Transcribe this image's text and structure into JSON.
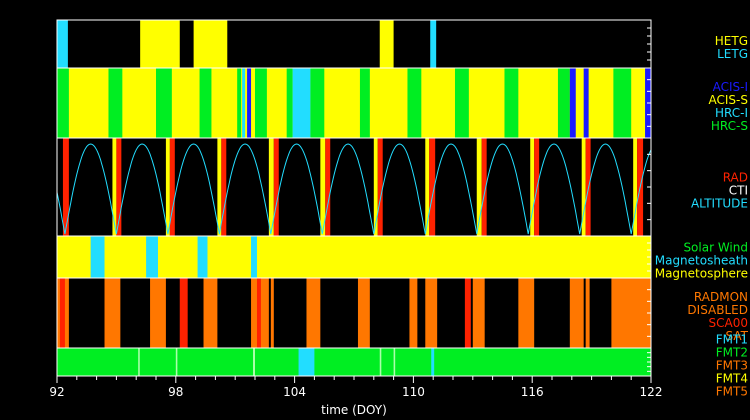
{
  "chart_data": {
    "type": "timeline",
    "xlabel": "time (DOY)",
    "xlim": [
      92,
      122
    ],
    "xticks": [
      92,
      98,
      104,
      110,
      116,
      122
    ],
    "colors": {
      "yellow": "#ffff00",
      "cyan": "#22ddff",
      "green": "#00ee22",
      "blue": "#1a1aff",
      "red": "#ff2200",
      "orange": "#ff7700",
      "white": "#ffffff",
      "black": "#000000"
    },
    "panels": [
      {
        "id": "grating",
        "legend": [
          {
            "label": "HETG",
            "color": "#ffff00"
          },
          {
            "label": "LETG",
            "color": "#22ddff"
          }
        ],
        "background": "#000000",
        "segments": [
          {
            "start": 92.0,
            "end": 92.55,
            "color": "#22ddff"
          },
          {
            "start": 96.2,
            "end": 98.2,
            "color": "#ffff00"
          },
          {
            "start": 98.9,
            "end": 100.6,
            "color": "#ffff00"
          },
          {
            "start": 108.3,
            "end": 109.0,
            "color": "#ffff00"
          },
          {
            "start": 110.85,
            "end": 111.15,
            "color": "#22ddff"
          }
        ]
      },
      {
        "id": "instrument",
        "legend": [
          {
            "label": "ACIS-I",
            "color": "#1a1aff"
          },
          {
            "label": "ACIS-S",
            "color": "#ffff00"
          },
          {
            "label": "HRC-I",
            "color": "#22ddff"
          },
          {
            "label": "HRC-S",
            "color": "#00ee22"
          }
        ],
        "background": "#ffff00",
        "segments": [
          {
            "start": 92.0,
            "end": 92.6,
            "color": "#00ee22"
          },
          {
            "start": 94.6,
            "end": 95.3,
            "color": "#00ee22"
          },
          {
            "start": 97.0,
            "end": 97.8,
            "color": "#00ee22"
          },
          {
            "start": 99.2,
            "end": 99.8,
            "color": "#00ee22"
          },
          {
            "start": 101.1,
            "end": 101.3,
            "color": "#00ee22"
          },
          {
            "start": 101.35,
            "end": 101.5,
            "color": "#22ddff"
          },
          {
            "start": 101.6,
            "end": 101.8,
            "color": "#1a1aff"
          },
          {
            "start": 102.0,
            "end": 102.6,
            "color": "#00ee22"
          },
          {
            "start": 103.6,
            "end": 103.9,
            "color": "#00ee22"
          },
          {
            "start": 103.9,
            "end": 104.8,
            "color": "#22ddff"
          },
          {
            "start": 104.8,
            "end": 105.5,
            "color": "#00ee22"
          },
          {
            "start": 107.3,
            "end": 107.8,
            "color": "#00ee22"
          },
          {
            "start": 109.7,
            "end": 110.4,
            "color": "#00ee22"
          },
          {
            "start": 112.1,
            "end": 112.8,
            "color": "#00ee22"
          },
          {
            "start": 114.6,
            "end": 115.3,
            "color": "#00ee22"
          },
          {
            "start": 117.3,
            "end": 117.9,
            "color": "#00ee22"
          },
          {
            "start": 117.9,
            "end": 118.2,
            "color": "#1a1aff"
          },
          {
            "start": 118.6,
            "end": 118.85,
            "color": "#1a1aff"
          },
          {
            "start": 120.1,
            "end": 121.0,
            "color": "#00ee22"
          },
          {
            "start": 121.7,
            "end": 122.0,
            "color": "#1a1aff"
          }
        ]
      },
      {
        "id": "radiation",
        "legend": [
          {
            "label": "RAD",
            "color": "#ff2200"
          },
          {
            "label": "CTI",
            "color": "#ffffff"
          },
          {
            "label": "ALTITUDE",
            "color": "#22ddff"
          }
        ],
        "background": "#000000",
        "altitude_perigees": [
          92.4,
          95.0,
          97.7,
          100.3,
          102.9,
          105.5,
          108.2,
          110.8,
          113.4,
          116.1,
          118.7,
          121.3
        ],
        "segments": [
          {
            "start": 92.3,
            "end": 92.6,
            "color": "#ff2200"
          },
          {
            "start": 94.8,
            "end": 95.0,
            "color": "#ffff00"
          },
          {
            "start": 95.0,
            "end": 95.25,
            "color": "#ff2200"
          },
          {
            "start": 97.5,
            "end": 97.7,
            "color": "#ffff00"
          },
          {
            "start": 97.7,
            "end": 97.95,
            "color": "#ff2200"
          },
          {
            "start": 100.1,
            "end": 100.3,
            "color": "#ffff00"
          },
          {
            "start": 100.3,
            "end": 100.55,
            "color": "#ff2200"
          },
          {
            "start": 102.7,
            "end": 102.95,
            "color": "#ffff00"
          },
          {
            "start": 102.95,
            "end": 103.2,
            "color": "#ff2200"
          },
          {
            "start": 105.3,
            "end": 105.55,
            "color": "#ffff00"
          },
          {
            "start": 105.55,
            "end": 105.8,
            "color": "#ff2200"
          },
          {
            "start": 108.0,
            "end": 108.2,
            "color": "#ffff00"
          },
          {
            "start": 108.2,
            "end": 108.45,
            "color": "#ff2200"
          },
          {
            "start": 110.6,
            "end": 110.8,
            "color": "#ffff00"
          },
          {
            "start": 110.8,
            "end": 111.1,
            "color": "#ff2200"
          },
          {
            "start": 113.2,
            "end": 113.45,
            "color": "#ffff00"
          },
          {
            "start": 113.45,
            "end": 113.7,
            "color": "#ff2200"
          },
          {
            "start": 115.9,
            "end": 116.1,
            "color": "#ffff00"
          },
          {
            "start": 116.1,
            "end": 116.35,
            "color": "#ff2200"
          },
          {
            "start": 118.5,
            "end": 118.7,
            "color": "#ffff00"
          },
          {
            "start": 118.7,
            "end": 118.95,
            "color": "#ff2200"
          },
          {
            "start": 121.1,
            "end": 121.3,
            "color": "#ffff00"
          },
          {
            "start": 121.3,
            "end": 121.6,
            "color": "#ff2200"
          }
        ]
      },
      {
        "id": "region",
        "legend": [
          {
            "label": "Solar Wind",
            "color": "#00ee22"
          },
          {
            "label": "Magnetosheath",
            "color": "#22ddff"
          },
          {
            "label": "Magnetosphere",
            "color": "#ffff00"
          }
        ],
        "background": "#ffff00",
        "segments": [
          {
            "start": 93.7,
            "end": 94.4,
            "color": "#22ddff"
          },
          {
            "start": 96.5,
            "end": 97.1,
            "color": "#22ddff"
          },
          {
            "start": 99.1,
            "end": 99.6,
            "color": "#22ddff"
          },
          {
            "start": 101.8,
            "end": 102.1,
            "color": "#22ddff"
          }
        ]
      },
      {
        "id": "radmon",
        "legend": [
          {
            "label": "RADMON",
            "color": "#ff7700"
          },
          {
            "label": "DISABLED",
            "color": "#ff7700"
          },
          {
            "label": "SCA00",
            "color": "#ff2200"
          },
          {
            "label": "SAT",
            "color": "#ff7700"
          }
        ],
        "background": "#000000",
        "segments": [
          {
            "start": 92.0,
            "end": 92.6,
            "color": "#ff7700"
          },
          {
            "start": 92.15,
            "end": 92.4,
            "color": "#ff2200"
          },
          {
            "start": 94.4,
            "end": 95.2,
            "color": "#ff7700"
          },
          {
            "start": 96.7,
            "end": 97.5,
            "color": "#ff7700"
          },
          {
            "start": 98.2,
            "end": 98.6,
            "color": "#ff2200"
          },
          {
            "start": 99.4,
            "end": 100.1,
            "color": "#ff7700"
          },
          {
            "start": 101.8,
            "end": 102.7,
            "color": "#ff7700"
          },
          {
            "start": 102.1,
            "end": 102.3,
            "color": "#ff2200"
          },
          {
            "start": 102.8,
            "end": 102.95,
            "color": "#ff7700"
          },
          {
            "start": 104.6,
            "end": 105.3,
            "color": "#ff7700"
          },
          {
            "start": 107.2,
            "end": 107.8,
            "color": "#ff7700"
          },
          {
            "start": 109.8,
            "end": 110.2,
            "color": "#ff7700"
          },
          {
            "start": 110.6,
            "end": 111.2,
            "color": "#ff7700"
          },
          {
            "start": 112.6,
            "end": 112.9,
            "color": "#ff2200"
          },
          {
            "start": 113.0,
            "end": 113.6,
            "color": "#ff7700"
          },
          {
            "start": 115.3,
            "end": 116.1,
            "color": "#ff7700"
          },
          {
            "start": 117.9,
            "end": 118.6,
            "color": "#ff7700"
          },
          {
            "start": 118.7,
            "end": 118.9,
            "color": "#ff7700"
          },
          {
            "start": 120.0,
            "end": 122.0,
            "color": "#ff7700"
          }
        ]
      },
      {
        "id": "format",
        "legend": [
          {
            "label": "FMT1",
            "color": "#22ddff"
          },
          {
            "label": "FMT2",
            "color": "#00ee22"
          },
          {
            "label": "FMT3",
            "color": "#ff7700"
          },
          {
            "label": "FMT4",
            "color": "#ffff00"
          },
          {
            "label": "FMT5",
            "color": "#ff7700"
          }
        ],
        "background": "#00ee22",
        "segments": [
          {
            "start": 96.1,
            "end": 96.18,
            "color": "#aaffaa"
          },
          {
            "start": 98.0,
            "end": 98.08,
            "color": "#aaffaa"
          },
          {
            "start": 101.9,
            "end": 102.0,
            "color": "#aaffaa"
          },
          {
            "start": 104.2,
            "end": 105.0,
            "color": "#22ddff"
          },
          {
            "start": 108.3,
            "end": 108.38,
            "color": "#aaffaa"
          },
          {
            "start": 109.0,
            "end": 109.08,
            "color": "#aaffaa"
          },
          {
            "start": 110.9,
            "end": 111.05,
            "color": "#22ddff"
          }
        ]
      }
    ]
  }
}
